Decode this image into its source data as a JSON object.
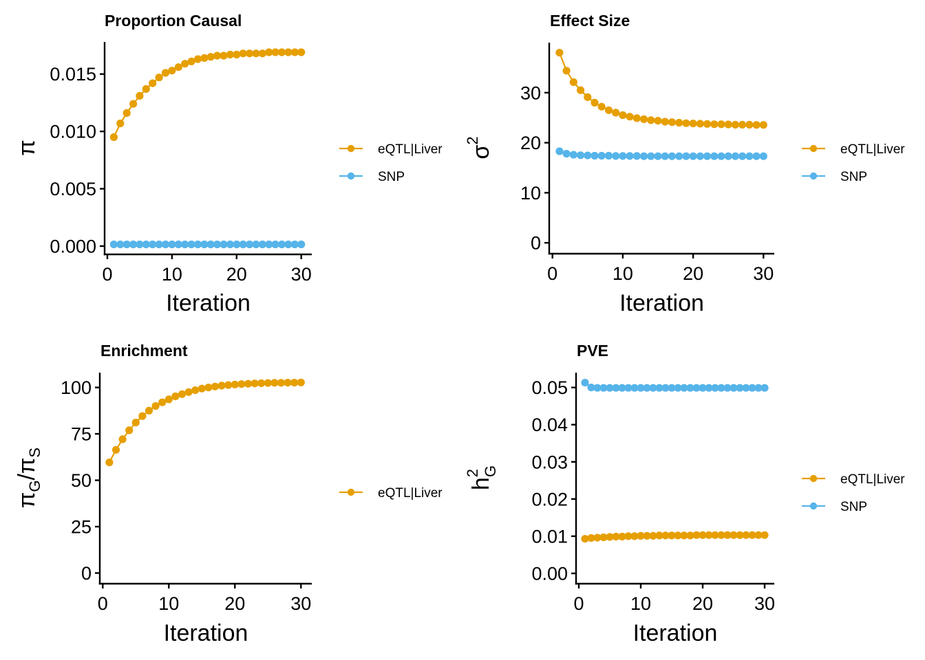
{
  "colors": {
    "eQTL|Liver": "#E69F00",
    "SNP": "#56B4E9"
  },
  "chart_data": [
    {
      "id": "proportion-causal",
      "type": "line",
      "title": "Proportion Causal",
      "xlabel": "Iteration",
      "ylabel": "π",
      "ylabel_parts": {
        "main": "π",
        "sub": "",
        "sup": ""
      },
      "xlim": [
        0,
        30
      ],
      "ylim": [
        -0.0006,
        0.0178
      ],
      "xticks": [
        0,
        10,
        20,
        30
      ],
      "xtick_labels": [
        "0",
        "10",
        "20",
        "30"
      ],
      "yticks": [
        0,
        0.005,
        0.01,
        0.015
      ],
      "ytick_labels": [
        "0.000",
        "0.005",
        "0.010",
        "0.015"
      ],
      "grid": false,
      "legend": [
        "eQTL|Liver",
        "SNP"
      ],
      "legend_position": "right",
      "x": [
        1,
        2,
        3,
        4,
        5,
        6,
        7,
        8,
        9,
        10,
        11,
        12,
        13,
        14,
        15,
        16,
        17,
        18,
        19,
        20,
        21,
        22,
        23,
        24,
        25,
        26,
        27,
        28,
        29,
        30
      ],
      "series": [
        {
          "name": "eQTL|Liver",
          "values": [
            0.0095,
            0.0107,
            0.0116,
            0.0124,
            0.0131,
            0.0137,
            0.0142,
            0.0147,
            0.0151,
            0.0153,
            0.0156,
            0.0159,
            0.0161,
            0.0163,
            0.0164,
            0.0165,
            0.0166,
            0.0166,
            0.0167,
            0.0167,
            0.0168,
            0.0168,
            0.0168,
            0.0168,
            0.0169,
            0.0169,
            0.0169,
            0.0169,
            0.0169,
            0.0169
          ]
        },
        {
          "name": "SNP",
          "values": [
            0.00015,
            0.00015,
            0.00015,
            0.00015,
            0.00015,
            0.00015,
            0.00015,
            0.00015,
            0.00015,
            0.00015,
            0.00015,
            0.00015,
            0.00015,
            0.00015,
            0.00015,
            0.00015,
            0.00015,
            0.00015,
            0.00015,
            0.00015,
            0.00015,
            0.00015,
            0.00015,
            0.00015,
            0.00015,
            0.00015,
            0.00015,
            0.00015,
            0.00015,
            0.00015
          ]
        }
      ]
    },
    {
      "id": "effect-size",
      "type": "line",
      "title": "Effect Size",
      "xlabel": "Iteration",
      "ylabel": "σ²",
      "ylabel_parts": {
        "main": "σ",
        "sub": "",
        "sup": "2"
      },
      "xlim": [
        0,
        30
      ],
      "ylim": [
        -1.9,
        40
      ],
      "xticks": [
        0,
        10,
        20,
        30
      ],
      "xtick_labels": [
        "0",
        "10",
        "20",
        "30"
      ],
      "yticks": [
        0,
        10,
        20,
        30
      ],
      "ytick_labels": [
        "0",
        "10",
        "20",
        "30"
      ],
      "grid": false,
      "legend": [
        "eQTL|Liver",
        "SNP"
      ],
      "legend_position": "right",
      "x": [
        1,
        2,
        3,
        4,
        5,
        6,
        7,
        8,
        9,
        10,
        11,
        12,
        13,
        14,
        15,
        16,
        17,
        18,
        19,
        20,
        21,
        22,
        23,
        24,
        25,
        26,
        27,
        28,
        29,
        30
      ],
      "series": [
        {
          "name": "eQTL|Liver",
          "values": [
            38.0,
            34.4,
            32.1,
            30.5,
            29.1,
            28.0,
            27.2,
            26.5,
            26.0,
            25.5,
            25.2,
            24.9,
            24.7,
            24.5,
            24.4,
            24.2,
            24.1,
            24.0,
            23.9,
            23.85,
            23.8,
            23.75,
            23.7,
            23.7,
            23.65,
            23.6,
            23.6,
            23.6,
            23.55,
            23.55
          ]
        },
        {
          "name": "SNP",
          "values": [
            18.3,
            17.8,
            17.6,
            17.5,
            17.45,
            17.4,
            17.4,
            17.4,
            17.35,
            17.35,
            17.35,
            17.35,
            17.3,
            17.3,
            17.3,
            17.3,
            17.3,
            17.3,
            17.3,
            17.3,
            17.3,
            17.3,
            17.3,
            17.3,
            17.3,
            17.3,
            17.3,
            17.3,
            17.3,
            17.3
          ]
        }
      ]
    },
    {
      "id": "enrichment",
      "type": "line",
      "title": "Enrichment",
      "xlabel": "Iteration",
      "ylabel": "πG/πS",
      "ylabel_parts": {
        "main": "π",
        "sub": "G",
        "sup": "",
        "slash": "/",
        "main2": "π",
        "sub2": "S"
      },
      "xlim": [
        0,
        30
      ],
      "ylim": [
        -5,
        108
      ],
      "xticks": [
        0,
        10,
        20,
        30
      ],
      "xtick_labels": [
        "0",
        "10",
        "20",
        "30"
      ],
      "yticks": [
        0,
        25,
        50,
        75,
        100
      ],
      "ytick_labels": [
        "0",
        "25",
        "50",
        "75",
        "100"
      ],
      "grid": false,
      "legend": [
        "eQTL|Liver"
      ],
      "legend_position": "right",
      "x": [
        1,
        2,
        3,
        4,
        5,
        6,
        7,
        8,
        9,
        10,
        11,
        12,
        13,
        14,
        15,
        16,
        17,
        18,
        19,
        20,
        21,
        22,
        23,
        24,
        25,
        26,
        27,
        28,
        29,
        30
      ],
      "series": [
        {
          "name": "eQTL|Liver",
          "values": [
            59.6,
            66.4,
            72.1,
            76.9,
            81.1,
            84.6,
            87.5,
            90.0,
            92.0,
            93.6,
            95.2,
            96.4,
            97.5,
            98.5,
            99.4,
            100.0,
            100.5,
            101.0,
            101.3,
            101.6,
            101.8,
            102.0,
            102.2,
            102.3,
            102.4,
            102.5,
            102.5,
            102.6,
            102.6,
            102.7
          ]
        }
      ]
    },
    {
      "id": "pve",
      "type": "line",
      "title": "PVE",
      "xlabel": "Iteration",
      "ylabel": "h²G",
      "ylabel_parts": {
        "main": "h",
        "sub": "G",
        "sup": "2"
      },
      "xlim": [
        0,
        30
      ],
      "ylim": [
        -0.0024,
        0.054
      ],
      "xticks": [
        0,
        10,
        20,
        30
      ],
      "xtick_labels": [
        "0",
        "10",
        "20",
        "30"
      ],
      "yticks": [
        0,
        0.01,
        0.02,
        0.03,
        0.04,
        0.05
      ],
      "ytick_labels": [
        "0.00",
        "0.01",
        "0.02",
        "0.03",
        "0.04",
        "0.05"
      ],
      "grid": false,
      "legend": [
        "eQTL|Liver",
        "SNP"
      ],
      "legend_position": "right",
      "x": [
        1,
        2,
        3,
        4,
        5,
        6,
        7,
        8,
        9,
        10,
        11,
        12,
        13,
        14,
        15,
        16,
        17,
        18,
        19,
        20,
        21,
        22,
        23,
        24,
        25,
        26,
        27,
        28,
        29,
        30
      ],
      "series": [
        {
          "name": "eQTL|Liver",
          "values": [
            0.0093,
            0.0095,
            0.0096,
            0.0097,
            0.0098,
            0.0099,
            0.0099,
            0.01,
            0.01,
            0.0101,
            0.0101,
            0.0101,
            0.0102,
            0.0102,
            0.0102,
            0.0102,
            0.0102,
            0.0102,
            0.0103,
            0.0103,
            0.0103,
            0.0103,
            0.0103,
            0.0103,
            0.0103,
            0.0103,
            0.0103,
            0.0103,
            0.0103,
            0.0103
          ]
        },
        {
          "name": "SNP",
          "values": [
            0.0513,
            0.05,
            0.0499,
            0.0499,
            0.0499,
            0.0499,
            0.0499,
            0.0499,
            0.0499,
            0.0499,
            0.0499,
            0.0499,
            0.0499,
            0.0499,
            0.0499,
            0.0499,
            0.0499,
            0.0499,
            0.0499,
            0.0499,
            0.0499,
            0.0499,
            0.0499,
            0.0499,
            0.0499,
            0.0499,
            0.0499,
            0.0499,
            0.0499,
            0.0499
          ]
        }
      ]
    }
  ]
}
